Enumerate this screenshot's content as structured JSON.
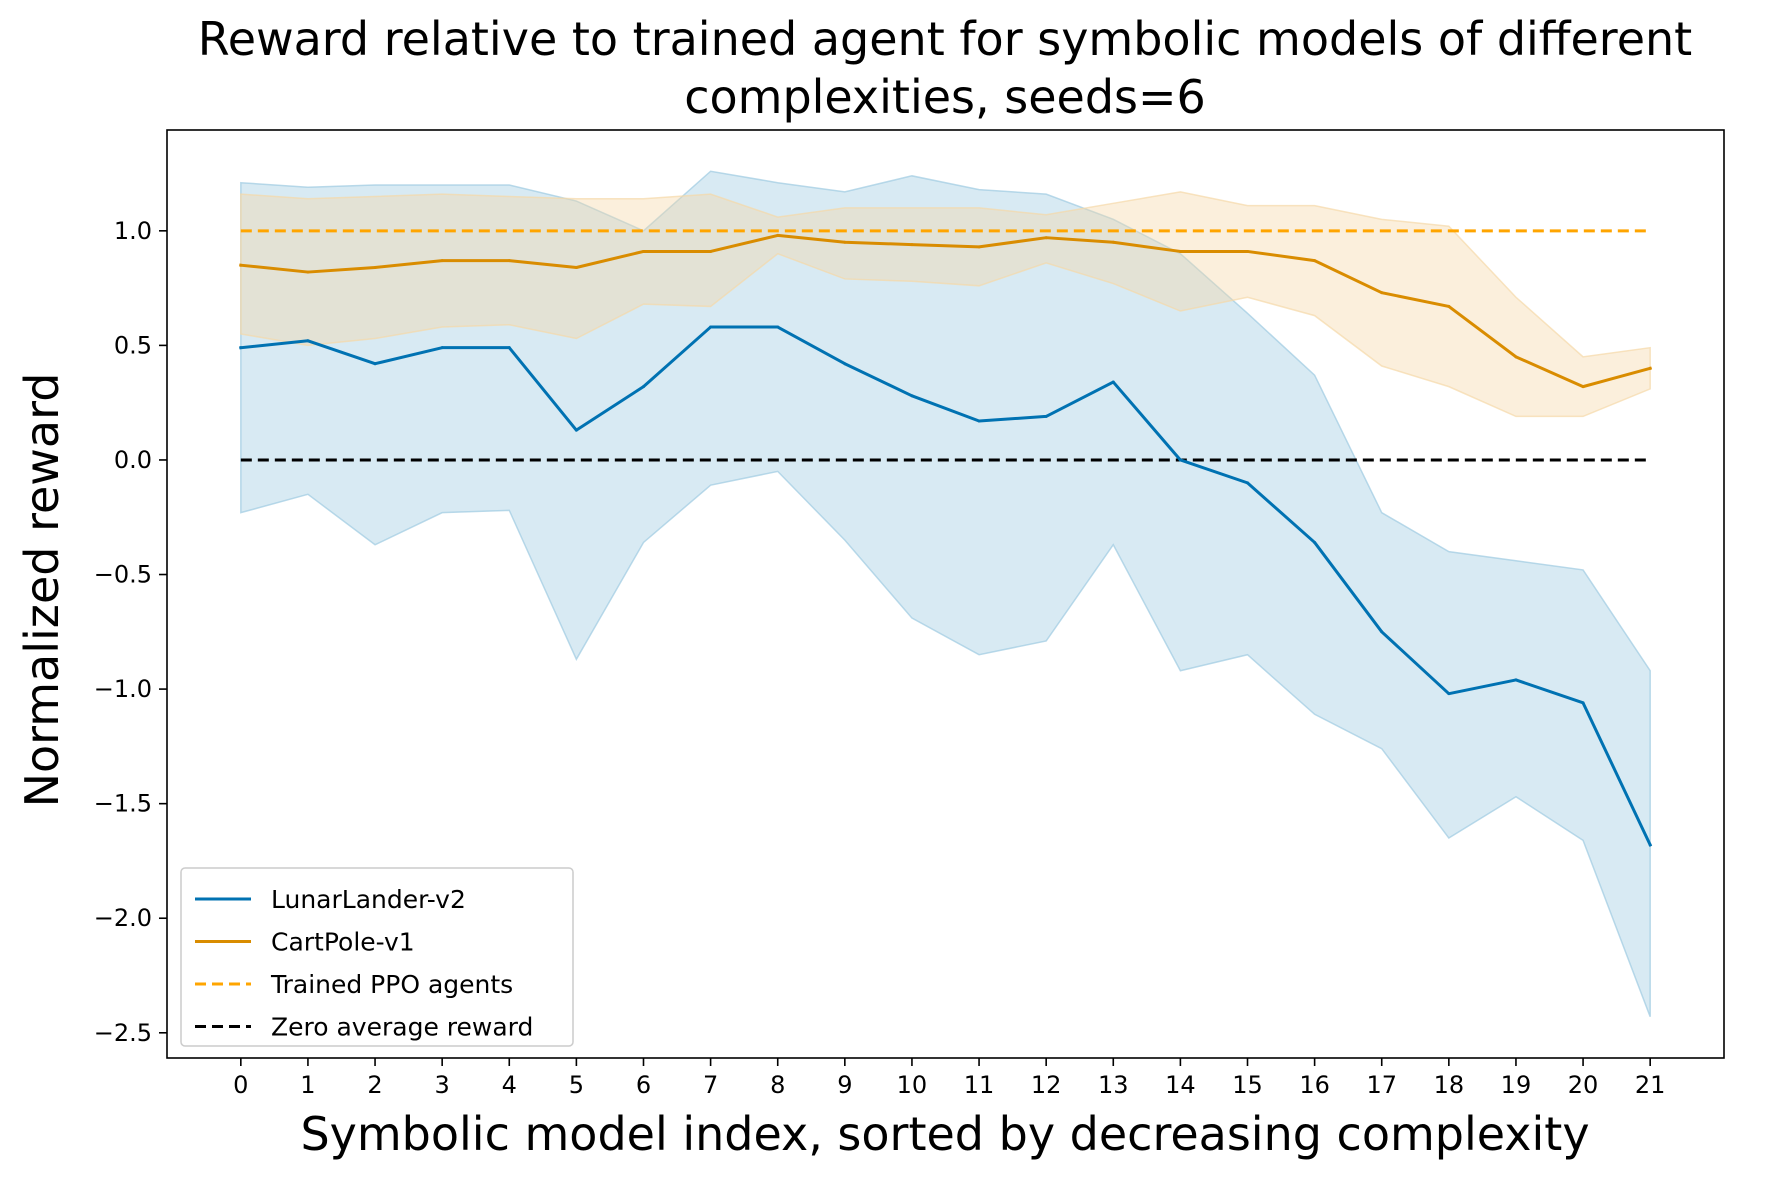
{
  "chart_data": {
    "type": "line",
    "title_lines": [
      "Reward relative to trained agent for symbolic models of different",
      "complexities, seeds=6"
    ],
    "xlabel": "Symbolic model index, sorted by decreasing complexity",
    "ylabel": "Normalized reward",
    "xlim": [
      -1.1,
      22.1
    ],
    "ylim": [
      -2.61,
      1.44
    ],
    "x": [
      0,
      1,
      2,
      3,
      4,
      5,
      6,
      7,
      8,
      9,
      10,
      11,
      12,
      13,
      14,
      15,
      16,
      17,
      18,
      19,
      20,
      21
    ],
    "x_tick_labels": [
      "0",
      "1",
      "2",
      "3",
      "4",
      "5",
      "6",
      "7",
      "8",
      "9",
      "10",
      "11",
      "12",
      "13",
      "14",
      "15",
      "16",
      "17",
      "18",
      "19",
      "20",
      "21"
    ],
    "y_ticks": [
      1.0,
      0.5,
      0.0,
      -0.5,
      -1.0,
      -1.5,
      -2.0,
      -2.5
    ],
    "y_tick_labels": [
      "1.0",
      "0.5",
      "0.0",
      "−0.5",
      "−1.0",
      "−1.5",
      "−2.0",
      "−2.5"
    ],
    "grid": false,
    "legend_position": "lower-left",
    "series": [
      {
        "name": "LunarLander-v2",
        "color": "#0072b2",
        "band_color": "#9ecae1",
        "values": [
          0.49,
          0.52,
          0.42,
          0.49,
          0.49,
          0.13,
          0.32,
          0.58,
          0.58,
          0.42,
          0.28,
          0.17,
          0.19,
          0.34,
          0.0,
          -0.1,
          -0.36,
          -0.75,
          -1.02,
          -0.96,
          -1.06,
          -1.68
        ],
        "upper": [
          1.21,
          1.19,
          1.2,
          1.2,
          1.2,
          1.13,
          1.0,
          1.26,
          1.21,
          1.17,
          1.24,
          1.18,
          1.16,
          1.05,
          0.9,
          0.64,
          0.37,
          -0.23,
          -0.4,
          -0.44,
          -0.48,
          -0.92
        ],
        "lower": [
          -0.23,
          -0.15,
          -0.37,
          -0.23,
          -0.22,
          -0.87,
          -0.36,
          -0.11,
          -0.05,
          -0.35,
          -0.69,
          -0.85,
          -0.79,
          -0.37,
          -0.92,
          -0.85,
          -1.11,
          -1.26,
          -1.65,
          -1.47,
          -1.66,
          -2.43
        ]
      },
      {
        "name": "CartPole-v1",
        "color": "#d98c00",
        "band_color": "#f5d8a8",
        "values": [
          0.85,
          0.82,
          0.84,
          0.87,
          0.87,
          0.84,
          0.91,
          0.91,
          0.98,
          0.95,
          0.94,
          0.93,
          0.97,
          0.95,
          0.91,
          0.91,
          0.87,
          0.73,
          0.67,
          0.45,
          0.32,
          0.4
        ],
        "upper": [
          1.16,
          1.14,
          1.15,
          1.16,
          1.15,
          1.14,
          1.14,
          1.16,
          1.06,
          1.1,
          1.1,
          1.1,
          1.07,
          1.12,
          1.17,
          1.11,
          1.11,
          1.05,
          1.02,
          0.71,
          0.45,
          0.49
        ],
        "lower": [
          0.55,
          0.5,
          0.53,
          0.58,
          0.59,
          0.53,
          0.68,
          0.67,
          0.9,
          0.79,
          0.78,
          0.76,
          0.86,
          0.77,
          0.65,
          0.71,
          0.63,
          0.41,
          0.32,
          0.19,
          0.19,
          0.31
        ]
      }
    ],
    "reference_lines": [
      {
        "name": "Trained PPO agents",
        "y": 1.0,
        "color": "#ffa500",
        "dashed": true
      },
      {
        "name": "Zero average reward",
        "y": 0.0,
        "color": "#000000",
        "dashed": true
      }
    ]
  }
}
